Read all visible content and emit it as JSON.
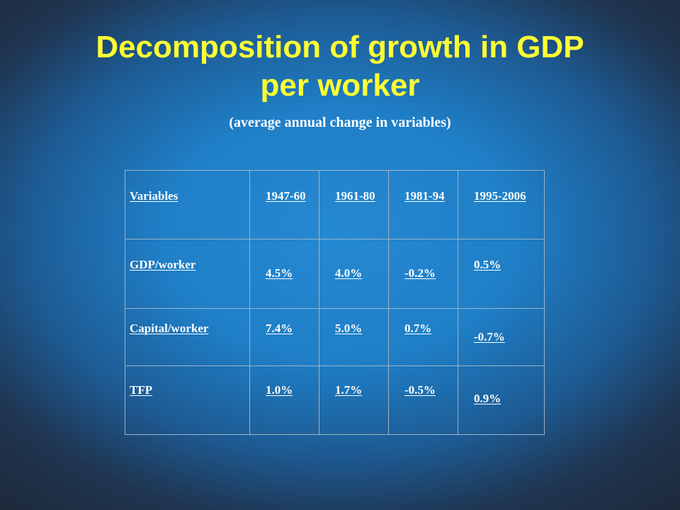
{
  "slide": {
    "title_line1": "Decomposition of growth in GDP",
    "title_line2": "per worker",
    "subtitle": "(average annual change in variables)"
  },
  "table": {
    "headers": [
      "Variables",
      "1947-60",
      "1961-80",
      "1981-94",
      "1995-2006"
    ],
    "rows": [
      {
        "label": "GDP/worker",
        "values": [
          "4.5%",
          "4.0%",
          "-0.2%",
          "0.5%"
        ]
      },
      {
        "label": "Capital/worker",
        "values": [
          "7.4%",
          "5.0%",
          "0.7%",
          "-0.7%"
        ]
      },
      {
        "label": "TFP",
        "values": [
          "1.0%",
          "1.7%",
          "-0.5%",
          "0.9%"
        ]
      }
    ]
  },
  "colors": {
    "title": "#ffff33",
    "text": "#ffffff",
    "background_center": "#2589d2",
    "background_edge": "#1e2a3c",
    "grid": "#9fb3c6"
  }
}
